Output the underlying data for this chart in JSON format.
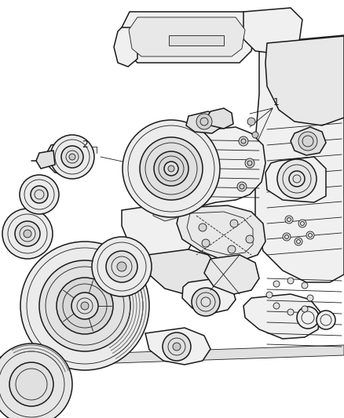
{
  "figsize": [
    4.38,
    5.33
  ],
  "dpi": 100,
  "background_color": "#ffffff",
  "line_color": "#1a1a1a",
  "light_fill": "#f0f0f0",
  "mid_fill": "#e0e0e0",
  "dark_fill": "#c8c8c8",
  "label_1": "1",
  "label_2": "2",
  "lw_main": 1.1,
  "lw_thin": 0.6,
  "lw_med": 0.85
}
